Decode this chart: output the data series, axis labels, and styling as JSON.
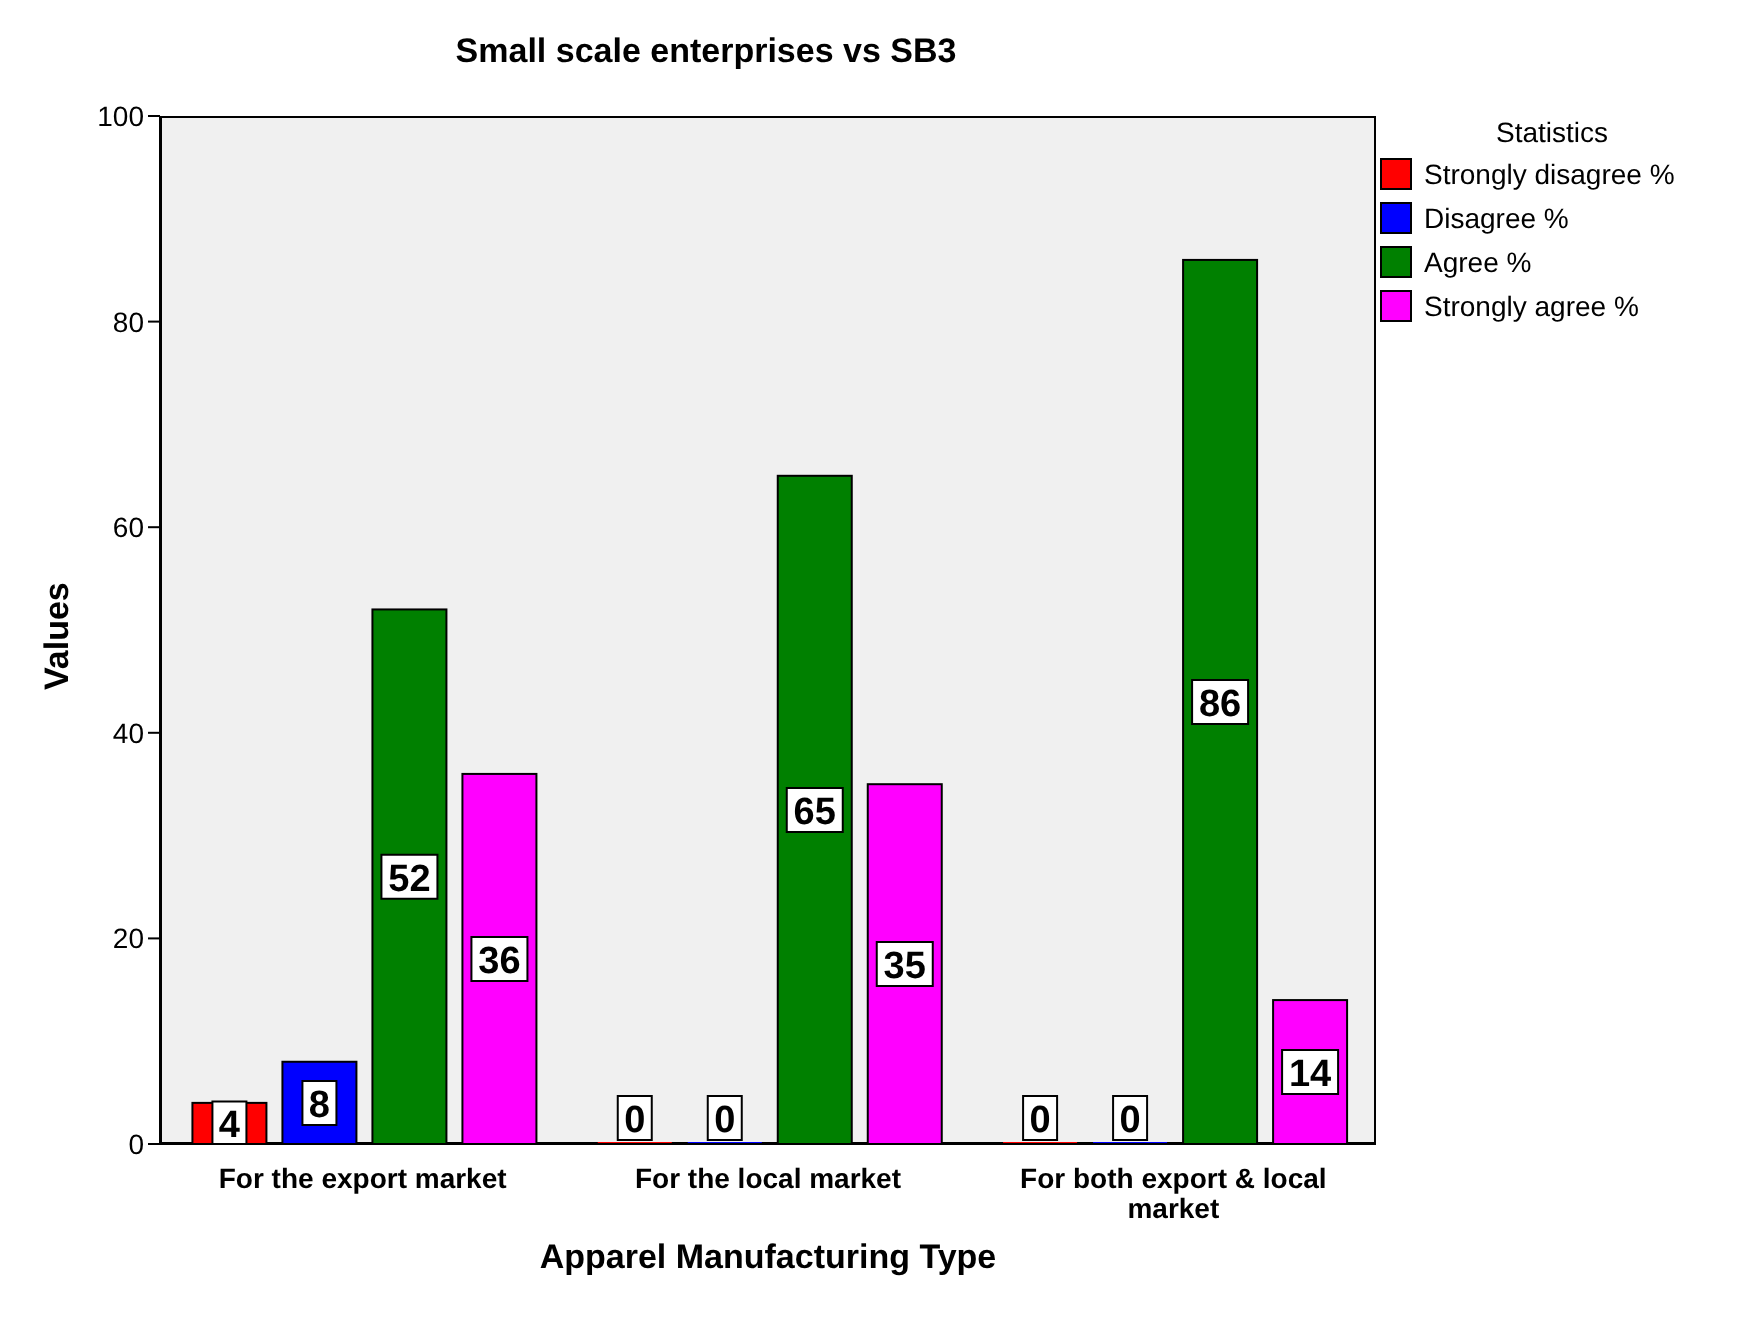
{
  "chart_data": {
    "type": "bar",
    "title": "Small scale enterprises vs SB3",
    "xlabel": "Apparel Manufacturing Type",
    "ylabel": "Values",
    "legend_title": "Statistics",
    "categories": [
      "For the export market",
      "For the local market",
      "For both export & local market"
    ],
    "series": [
      {
        "name": "Strongly disagree %",
        "color": "#ff0000",
        "values": [
          4,
          0,
          0
        ]
      },
      {
        "name": "Disagree %",
        "color": "#0000ff",
        "values": [
          8,
          0,
          0
        ]
      },
      {
        "name": "Agree %",
        "color": "#008000",
        "values": [
          52,
          65,
          86
        ]
      },
      {
        "name": "Strongly agree %",
        "color": "#ff00ff",
        "values": [
          36,
          35,
          14
        ]
      }
    ],
    "ylim": [
      0,
      100
    ],
    "yticks": [
      0,
      20,
      40,
      60,
      80,
      100
    ],
    "grid": false,
    "legend": "top right",
    "data_labels": true
  }
}
